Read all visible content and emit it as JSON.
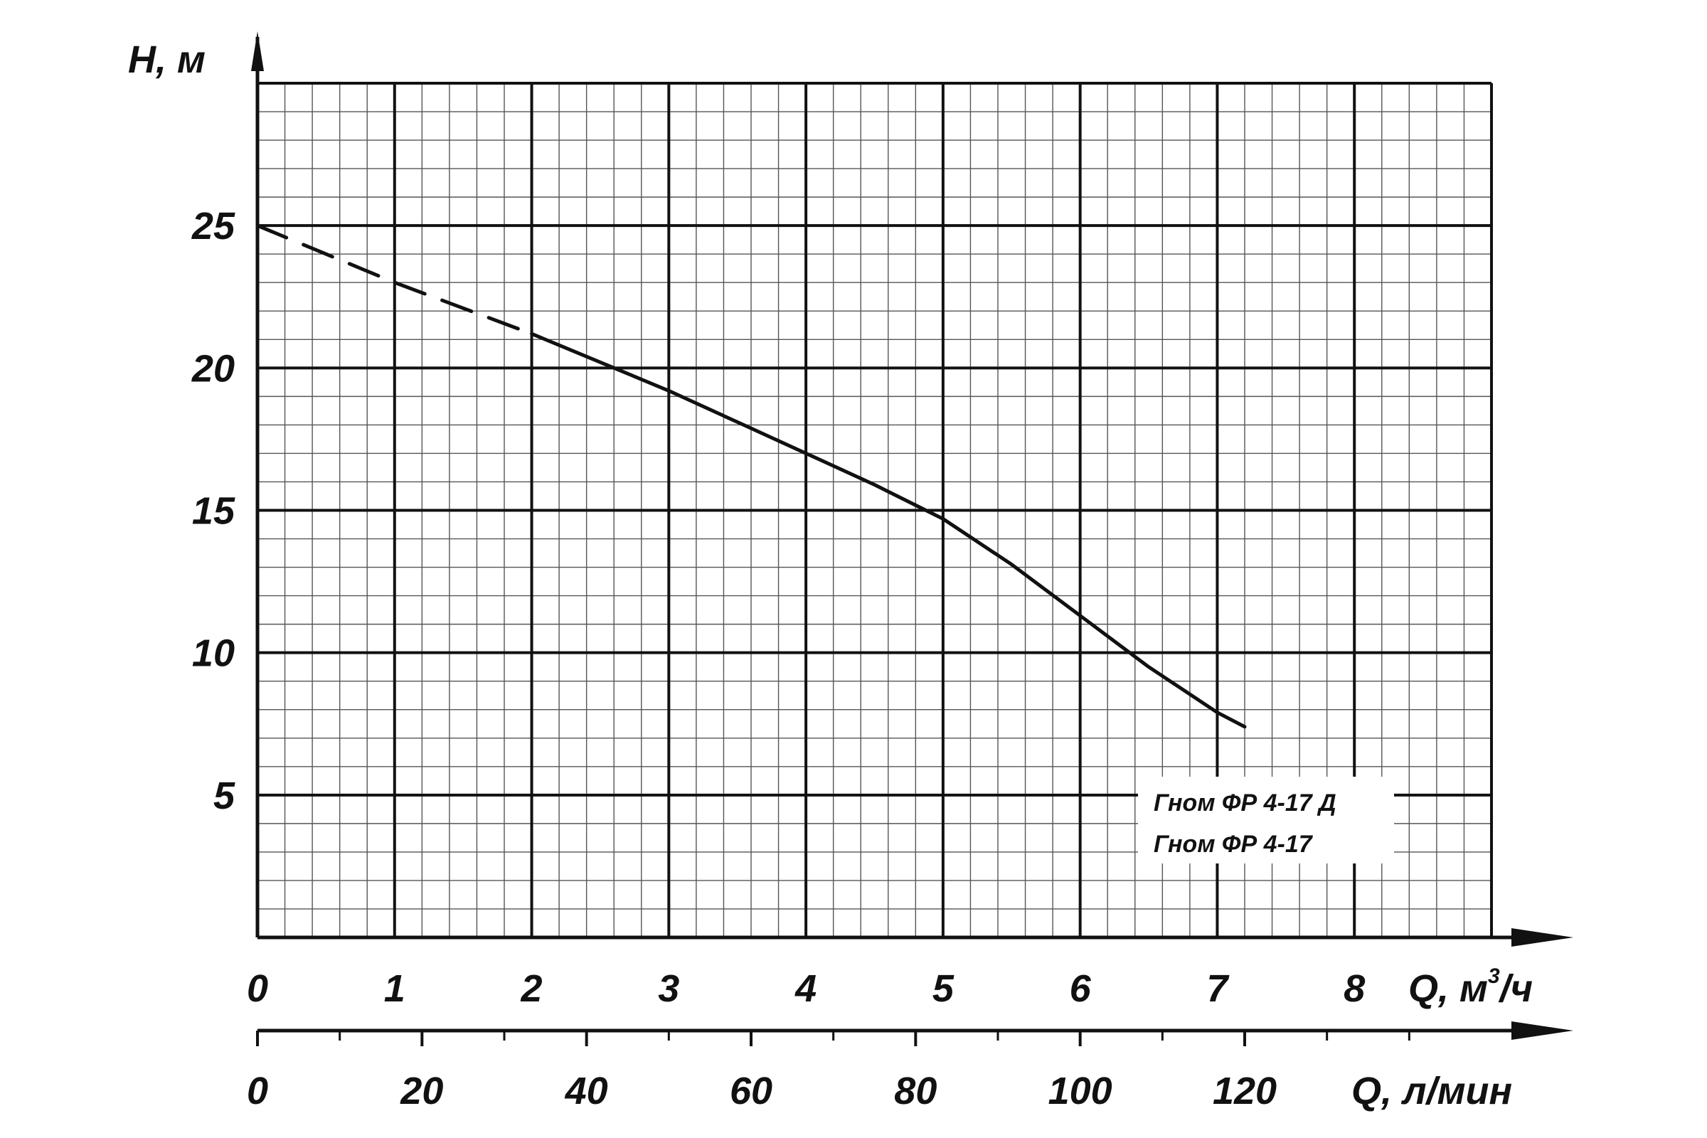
{
  "chart_data": {
    "type": "line",
    "title": "",
    "ylabel": "H, м",
    "xlabel_primary": "Q, м³/ч",
    "xlabel_primary_main": "Q, м",
    "xlabel_primary_sup": "3",
    "xlabel_primary_tail": "/ч",
    "xlabel_secondary": "Q, л/мин",
    "xlim": [
      0,
      9
    ],
    "ylim": [
      0,
      30
    ],
    "secondary_xlim": [
      0,
      150
    ],
    "grid": true,
    "y_ticks": [
      5,
      10,
      15,
      20,
      25
    ],
    "y_tick_labels": [
      "5",
      "10",
      "15",
      "20",
      "25"
    ],
    "x_ticks": [
      0,
      1,
      2,
      3,
      4,
      5,
      6,
      7,
      8
    ],
    "x_tick_labels": [
      "0",
      "1",
      "2",
      "3",
      "4",
      "5",
      "6",
      "7",
      "8"
    ],
    "secondary_x_ticks": [
      0,
      20,
      40,
      60,
      80,
      100,
      120
    ],
    "secondary_x_tick_labels": [
      "0",
      "20",
      "40",
      "60",
      "80",
      "100",
      "120"
    ],
    "secondary_minor_ticks": [
      10,
      30,
      50,
      70,
      90,
      110,
      130,
      140
    ],
    "series": [
      {
        "style": "dashed",
        "x": [
          0.0,
          0.5,
          1.0,
          1.5,
          2.0
        ],
        "y": [
          25.0,
          24.0,
          23.0,
          22.1,
          21.2
        ]
      },
      {
        "style": "solid",
        "x": [
          2.0,
          2.5,
          3.0,
          3.5,
          4.0,
          4.5,
          5.0,
          5.5,
          6.0,
          6.5,
          7.0,
          7.2
        ],
        "y": [
          21.2,
          20.2,
          19.2,
          18.1,
          17.0,
          15.9,
          14.7,
          13.1,
          11.3,
          9.5,
          7.9,
          7.4
        ]
      }
    ],
    "legend_entries": [
      "Гном ФР 4-17 Д",
      "Гном ФР 4-17"
    ],
    "legend_position": "bottom-right"
  }
}
